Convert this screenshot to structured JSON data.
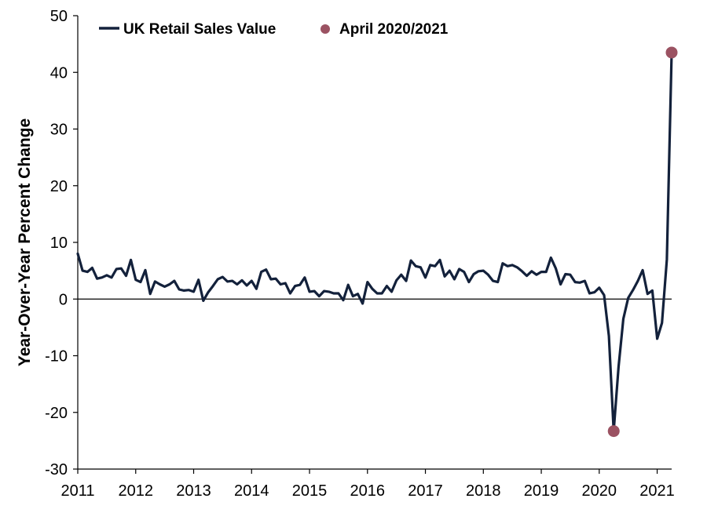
{
  "chart_data": {
    "type": "line",
    "title": "",
    "xlabel": "",
    "ylabel": "Year-Over-Year Percent Change",
    "ylim": [
      -30,
      50
    ],
    "yticks": [
      -30,
      -20,
      -10,
      0,
      10,
      20,
      30,
      40,
      50
    ],
    "xlim": [
      2011,
      2021.25
    ],
    "xticks": [
      "2011",
      "2012",
      "2013",
      "2014",
      "2015",
      "2016",
      "2017",
      "2018",
      "2019",
      "2020",
      "2021"
    ],
    "legend_position": "top",
    "colors": {
      "line": "#13213b",
      "marker": "#9b5262",
      "axis": "#000000"
    },
    "series": [
      {
        "name": "UK Retail Sales Value",
        "kind": "line",
        "start": "2011-01",
        "frequency": "monthly",
        "values": [
          8.0,
          5.0,
          4.8,
          5.5,
          3.6,
          3.8,
          4.2,
          3.8,
          5.3,
          5.4,
          4.1,
          6.9,
          3.4,
          3.0,
          5.1,
          0.9,
          3.1,
          2.6,
          2.2,
          2.6,
          3.2,
          1.7,
          1.5,
          1.6,
          1.3,
          3.4,
          -0.3,
          1.2,
          2.3,
          3.5,
          3.9,
          3.1,
          3.2,
          2.6,
          3.3,
          2.4,
          3.2,
          1.8,
          4.8,
          5.2,
          3.5,
          3.6,
          2.6,
          2.8,
          1.0,
          2.3,
          2.5,
          3.8,
          1.3,
          1.4,
          0.5,
          1.4,
          1.3,
          1.0,
          1.0,
          -0.2,
          2.5,
          0.5,
          0.9,
          -0.8,
          3.0,
          1.8,
          1.0,
          1.0,
          2.3,
          1.3,
          3.3,
          4.3,
          3.2,
          6.8,
          5.8,
          5.6,
          3.8,
          6.0,
          5.8,
          6.9,
          4.0,
          5.0,
          3.5,
          5.3,
          4.8,
          3.0,
          4.4,
          4.9,
          5.0,
          4.3,
          3.2,
          3.0,
          6.3,
          5.8,
          6.0,
          5.6,
          4.9,
          4.1,
          4.9,
          4.3,
          4.8,
          4.8,
          7.3,
          5.4,
          2.6,
          4.4,
          4.3,
          3.0,
          2.9,
          3.2,
          1.0,
          1.2,
          2.0,
          0.7,
          -6.5,
          -23.3,
          -12.0,
          -3.5,
          0.2,
          1.6,
          3.2,
          5.1,
          0.9,
          1.5,
          -7.0,
          -4.2,
          7.0,
          43.5
        ]
      },
      {
        "name": "April 2020/2021",
        "kind": "marker",
        "points": [
          {
            "x": "2020-04",
            "y": -23.3
          },
          {
            "x": "2021-04",
            "y": 43.5
          }
        ]
      }
    ]
  }
}
